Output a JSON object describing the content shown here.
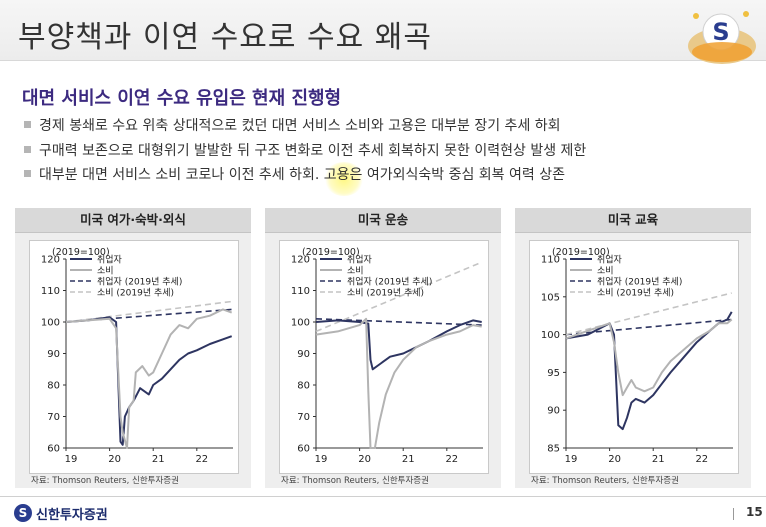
{
  "page": {
    "title": "부양책과 이연 수요로 수요 왜곡",
    "subtitle": "대면 서비스 이연 수요 유입은 현재 진행형",
    "bullets": [
      "경제 봉쇄로 수요 위축 상대적으로 컸던 대면 서비스 소비와 고용은 대부분 장기 추세 하회",
      "구매력 보존으로 대형위기 발발한 뒤 구조 변화로 이전 추세 회복하지 못한 이력현상 발생 제한",
      "대부분 대면 서비스 소비 코로나 이전 추세 하회. 고용은 여가외식숙박 중심 회복 여력 상존"
    ],
    "page_number": "15",
    "logo_text": "신한투자증권",
    "logo_mark": "S"
  },
  "colors": {
    "employment": "#2e3561",
    "consumption": "#b3b3b3",
    "employment_trend": "#2e3561",
    "consumption_trend": "#c4c4c4",
    "subtitle": "#3c2a80",
    "highlight": "#fff55a"
  },
  "chart_data": [
    {
      "type": "line",
      "title": "미국 여가·숙박·외식",
      "unit_label": "(2019=100)",
      "source": "자료: Thomson Reuters, 신한투자증권",
      "xlim": [
        2019,
        2022.83
      ],
      "ylim": [
        60,
        120
      ],
      "xticks": [
        2019,
        2020,
        2021,
        2022
      ],
      "xtick_labels": [
        "19",
        "20",
        "21",
        "22"
      ],
      "yticks": [
        60,
        70,
        80,
        90,
        100,
        110,
        120
      ],
      "grid": false,
      "legend_position": "top-left",
      "series": [
        {
          "name": "취업자",
          "style": "solid",
          "x": [
            2019,
            2019.5,
            2020.0,
            2020.15,
            2020.25,
            2020.3,
            2020.35,
            2020.45,
            2020.55,
            2020.7,
            2020.9,
            2021.0,
            2021.2,
            2021.4,
            2021.6,
            2021.8,
            2022.0,
            2022.3,
            2022.6,
            2022.8
          ],
          "y": [
            100,
            100.5,
            101.5,
            100,
            62,
            61,
            70,
            73,
            75,
            79,
            77,
            80,
            82,
            85,
            88,
            90,
            91,
            93,
            94.5,
            95.5
          ]
        },
        {
          "name": "소비",
          "style": "solid",
          "x": [
            2019,
            2019.5,
            2020.0,
            2020.15,
            2020.25,
            2020.3,
            2020.4,
            2020.45,
            2020.55,
            2020.6,
            2020.75,
            2020.9,
            2021.0,
            2021.2,
            2021.4,
            2021.6,
            2021.8,
            2022.0,
            2022.3,
            2022.6,
            2022.8
          ],
          "y": [
            100,
            100.5,
            101,
            98,
            70,
            65,
            60,
            73,
            75,
            84,
            86,
            83,
            84,
            90,
            96,
            99,
            98,
            101,
            102,
            104,
            103
          ]
        },
        {
          "name": "취업자 (2019년 추세)",
          "style": "dashed",
          "x": [
            2019,
            2022.8
          ],
          "y": [
            100,
            104
          ]
        },
        {
          "name": "소비 (2019년 추세)",
          "style": "dashed",
          "x": [
            2019,
            2022.8
          ],
          "y": [
            100,
            106.5
          ]
        }
      ]
    },
    {
      "type": "line",
      "title": "미국 운송",
      "unit_label": "(2019=100)",
      "source": "자료: Thomson Reuters, 신한투자증권",
      "xlim": [
        2019,
        2022.83
      ],
      "ylim": [
        60,
        120
      ],
      "xticks": [
        2019,
        2020,
        2021,
        2022
      ],
      "xtick_labels": [
        "19",
        "20",
        "21",
        "22"
      ],
      "yticks": [
        60,
        70,
        80,
        90,
        100,
        110,
        120
      ],
      "grid": false,
      "legend_position": "top-left",
      "series": [
        {
          "name": "취업자",
          "style": "solid",
          "x": [
            2019,
            2019.5,
            2020.0,
            2020.2,
            2020.25,
            2020.3,
            2020.5,
            2020.7,
            2021.0,
            2021.3,
            2021.6,
            2022.0,
            2022.3,
            2022.6,
            2022.8
          ],
          "y": [
            100,
            100.5,
            100,
            99.5,
            88,
            85,
            87,
            89,
            90,
            92,
            94,
            97,
            99,
            100.5,
            100
          ]
        },
        {
          "name": "소비",
          "style": "solid",
          "x": [
            2019,
            2019.5,
            2020.0,
            2020.15,
            2020.2,
            2020.25,
            2020.35,
            2020.45,
            2020.6,
            2020.8,
            2021.0,
            2021.3,
            2021.6,
            2022.0,
            2022.3,
            2022.6,
            2022.8
          ],
          "y": [
            96,
            97,
            99,
            101,
            78,
            60,
            60,
            68,
            77,
            84,
            88,
            92,
            94,
            96,
            97,
            99,
            98.5
          ]
        },
        {
          "name": "취업자 (2019년 추세)",
          "style": "dashed",
          "x": [
            2019,
            2022.8
          ],
          "y": [
            101,
            99
          ]
        },
        {
          "name": "소비 (2019년 추세)",
          "style": "dashed",
          "x": [
            2019,
            2022.8
          ],
          "y": [
            97,
            119
          ]
        }
      ]
    },
    {
      "type": "line",
      "title": "미국 교육",
      "unit_label": "(2019=100)",
      "source": "자료: Thomson Reuters, 신한투자증권",
      "xlim": [
        2019,
        2022.83
      ],
      "ylim": [
        85,
        110
      ],
      "xticks": [
        2019,
        2020,
        2021,
        2022
      ],
      "xtick_labels": [
        "19",
        "20",
        "21",
        "22"
      ],
      "yticks": [
        85,
        90,
        95,
        100,
        105,
        110
      ],
      "grid": false,
      "legend_position": "top-left",
      "series": [
        {
          "name": "취업자",
          "style": "solid",
          "x": [
            2019,
            2019.5,
            2020.0,
            2020.1,
            2020.2,
            2020.3,
            2020.4,
            2020.5,
            2020.6,
            2020.8,
            2021.0,
            2021.2,
            2021.4,
            2021.7,
            2022.0,
            2022.3,
            2022.5,
            2022.7,
            2022.8
          ],
          "y": [
            99.5,
            100,
            101.5,
            100,
            88,
            87.5,
            89,
            91,
            91.5,
            91,
            92,
            93.5,
            95,
            97,
            99,
            100.5,
            101.5,
            102,
            103
          ]
        },
        {
          "name": "소비",
          "style": "solid",
          "x": [
            2019,
            2019.5,
            2020.0,
            2020.1,
            2020.2,
            2020.3,
            2020.4,
            2020.5,
            2020.6,
            2020.8,
            2021.0,
            2021.2,
            2021.4,
            2021.7,
            2022.0,
            2022.3,
            2022.5,
            2022.7,
            2022.8
          ],
          "y": [
            99.5,
            100.5,
            101.5,
            99,
            95,
            92,
            93,
            94,
            93,
            92.5,
            93,
            95,
            96.5,
            98,
            99.5,
            100.5,
            101.5,
            101.5,
            102
          ]
        },
        {
          "name": "취업자 (2019년 추세)",
          "style": "dashed",
          "x": [
            2019,
            2022.8
          ],
          "y": [
            100,
            102
          ]
        },
        {
          "name": "소비 (2019년 추세)",
          "style": "dashed",
          "x": [
            2019,
            2022.8
          ],
          "y": [
            100,
            105.5
          ]
        }
      ]
    }
  ]
}
